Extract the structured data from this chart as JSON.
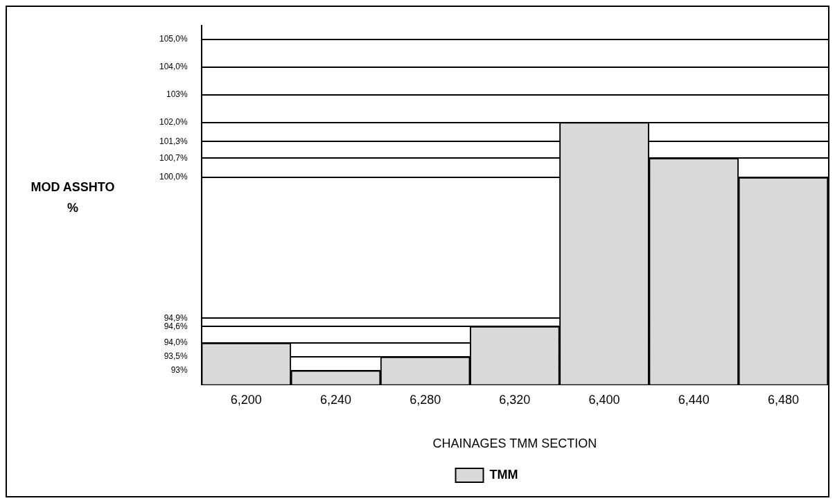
{
  "chart_data": {
    "type": "bar",
    "xlabel": "CHAINAGES TMM SECTION",
    "ylabel": "MOD ASSHTO %",
    "categories": [
      "6,200",
      "6,240",
      "6,280",
      "6,320",
      "6,400",
      "6,440",
      "6,480"
    ],
    "series": [
      {
        "name": "TMM",
        "color": "#d9d9d9",
        "values": [
          94.0,
          93,
          93.5,
          94.6,
          102.0,
          100.7,
          100.0
        ]
      }
    ],
    "ylim": [
      92.5,
      105.5
    ],
    "yticks": [
      {
        "value": 93,
        "label": "93%"
      },
      {
        "value": 93.5,
        "label": "93,5%"
      },
      {
        "value": 94.0,
        "label": "94,0%"
      },
      {
        "value": 94.6,
        "label": "94,6%"
      },
      {
        "value": 94.9,
        "label": "94,9%"
      },
      {
        "value": 100.0,
        "label": "100,0%"
      },
      {
        "value": 100.7,
        "label": "100,7%"
      },
      {
        "value": 101.3,
        "label": "101,3%"
      },
      {
        "value": 102.0,
        "label": "102,0%"
      },
      {
        "value": 103,
        "label": "103%"
      },
      {
        "value": 104.0,
        "label": "104,0%"
      },
      {
        "value": 105.0,
        "label": "105,0%"
      }
    ],
    "grid": "y",
    "legend": "bottom"
  }
}
